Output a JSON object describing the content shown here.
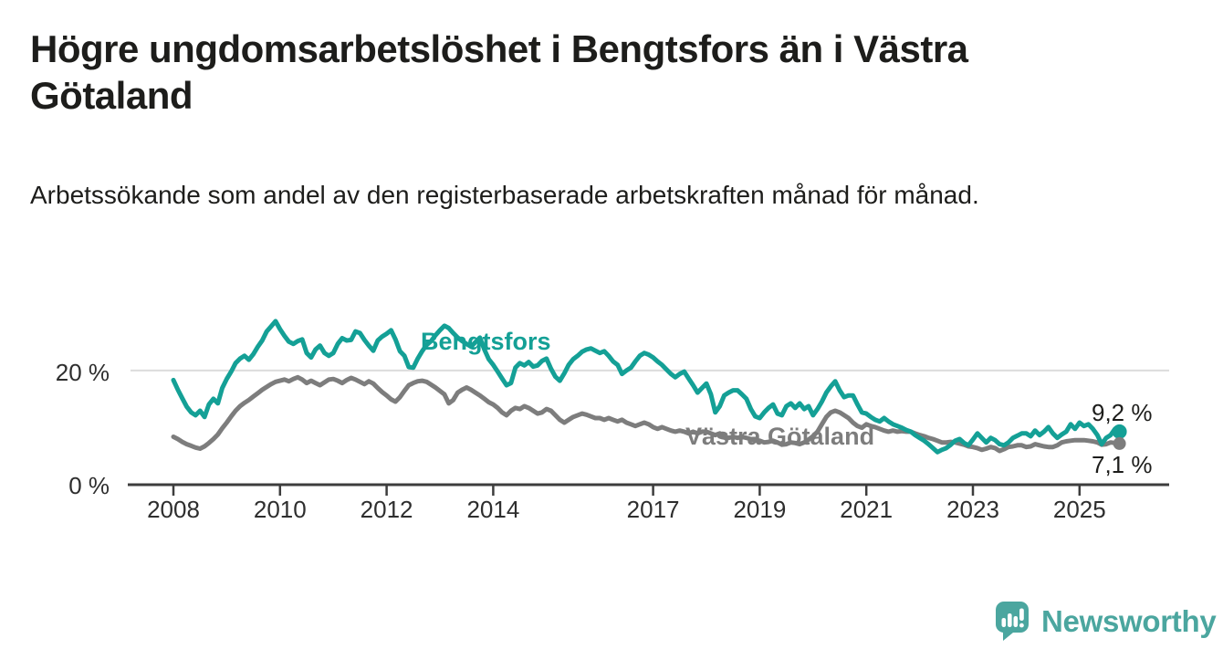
{
  "header": {
    "title": "Högre ungdomsarbetslöshet i Bengtsfors än i Västra Götaland",
    "subtitle": "Arbetssökande som andel av den registerbaserade arbetskraften månad för månad."
  },
  "branding": {
    "logo_text": "Newsworthy",
    "logo_icon": "bar-chart-speech-bubble-icon",
    "logo_color": "#4ba69f"
  },
  "colors": {
    "bengtsfors_line": "#14a096",
    "vastra_gotaland_line": "#7d7d7d",
    "axis": "#3d3d3d",
    "gridline": "#dcdcdc",
    "text": "#1d1d1b"
  },
  "chart_data": {
    "type": "line",
    "title": "Högre ungdomsarbetslöshet i Bengtsfors än i Västra Götaland",
    "subtitle": "Arbetssökande som andel av den registerbaserade arbetskraften månad för månad.",
    "unit": "%",
    "x_start_year": 2008,
    "x_step_months": 1,
    "x_ticks": [
      {
        "year": 2008,
        "label": "2008"
      },
      {
        "year": 2010,
        "label": "2010"
      },
      {
        "year": 2012,
        "label": "2012"
      },
      {
        "year": 2014,
        "label": "2014"
      },
      {
        "year": 2017,
        "label": "2017"
      },
      {
        "year": 2019,
        "label": "2019"
      },
      {
        "year": 2021,
        "label": "2021"
      },
      {
        "year": 2023,
        "label": "2023"
      },
      {
        "year": 2025,
        "label": "2025"
      }
    ],
    "y_ticks": [
      {
        "value": 20,
        "label": "20 %"
      },
      {
        "value": 0,
        "label": "0 %"
      }
    ],
    "gridlines": [
      20
    ],
    "ylim": [
      0,
      30.6
    ],
    "legend_position": "inline-labels",
    "series": [
      {
        "name": "Bengtsfors",
        "color": "#14a096",
        "end_label": "9,2 %",
        "last_value": 9.2,
        "values": [
          18.3,
          16.6,
          15.1,
          13.6,
          12.6,
          12.1,
          12.9,
          11.8,
          14.0,
          15.0,
          14.2,
          16.9,
          18.5,
          19.8,
          21.3,
          22.1,
          22.6,
          21.9,
          22.9,
          24.2,
          25.3,
          26.9,
          27.8,
          28.7,
          27.3,
          26.1,
          25.1,
          24.7,
          25.2,
          25.5,
          23.1,
          22.3,
          23.7,
          24.4,
          23.1,
          22.6,
          23.1,
          24.7,
          25.7,
          25.3,
          25.4,
          26.9,
          26.6,
          25.4,
          24.4,
          23.5,
          25.3,
          26.0,
          26.5,
          27.1,
          25.5,
          23.4,
          22.6,
          20.6,
          20.5,
          22.1,
          23.4,
          24.5,
          25.2,
          26.2,
          27.1,
          27.9,
          27.5,
          26.6,
          25.8,
          25.2,
          24.7,
          24.2,
          25.0,
          25.8,
          23.7,
          22.0,
          21.0,
          19.8,
          18.6,
          17.4,
          17.8,
          20.5,
          21.3,
          20.9,
          21.5,
          20.7,
          20.9,
          21.7,
          22.1,
          20.3,
          18.9,
          18.2,
          19.5,
          21.0,
          22.0,
          22.6,
          23.3,
          23.7,
          23.9,
          23.5,
          23.1,
          23.4,
          22.6,
          21.6,
          21.0,
          19.4,
          20.0,
          20.5,
          21.6,
          22.6,
          23.1,
          22.8,
          22.3,
          21.6,
          21.0,
          20.2,
          19.4,
          18.8,
          19.4,
          19.8,
          18.6,
          17.4,
          16.1,
          16.9,
          17.7,
          15.8,
          12.6,
          13.7,
          15.6,
          16.1,
          16.5,
          16.5,
          15.8,
          15.0,
          13.2,
          11.9,
          11.6,
          12.6,
          13.4,
          14.0,
          12.4,
          12.1,
          13.7,
          14.2,
          13.4,
          14.2,
          13.2,
          13.7,
          12.1,
          13.2,
          14.5,
          16.1,
          17.2,
          18.1,
          16.5,
          15.3,
          15.6,
          15.6,
          14.0,
          12.6,
          12.4,
          11.8,
          11.3,
          11.0,
          11.6,
          11.0,
          10.5,
          10.2,
          9.9,
          9.5,
          9.2,
          8.6,
          8.1,
          7.6,
          7.0,
          6.3,
          5.6,
          6.0,
          6.3,
          6.9,
          7.6,
          7.9,
          7.2,
          6.8,
          7.8,
          8.9,
          8.1,
          7.3,
          8.1,
          7.7,
          7.0,
          6.8,
          7.3,
          8.1,
          8.5,
          8.9,
          8.9,
          8.4,
          9.4,
          8.6,
          9.2,
          10.0,
          8.9,
          8.1,
          8.7,
          9.2,
          10.5,
          9.7,
          10.8,
          10.2,
          10.5,
          9.7,
          8.6,
          7.0,
          8.1,
          8.6,
          9.7,
          9.2
        ]
      },
      {
        "name": "Västra Götaland",
        "color": "#7d7d7d",
        "end_label": "7,1 %",
        "last_value": 7.1,
        "values": [
          8.3,
          7.9,
          7.4,
          7.0,
          6.7,
          6.4,
          6.2,
          6.6,
          7.2,
          7.9,
          8.7,
          9.8,
          10.8,
          11.9,
          12.9,
          13.7,
          14.3,
          14.8,
          15.4,
          16.0,
          16.6,
          17.1,
          17.6,
          18.0,
          18.2,
          18.4,
          18.1,
          18.5,
          18.8,
          18.4,
          17.8,
          18.2,
          17.8,
          17.4,
          17.9,
          18.4,
          18.5,
          18.2,
          17.8,
          18.3,
          18.7,
          18.4,
          18.0,
          17.6,
          18.1,
          17.7,
          16.9,
          16.2,
          15.6,
          14.9,
          14.5,
          15.3,
          16.4,
          17.4,
          17.8,
          18.1,
          18.2,
          18.0,
          17.5,
          17.0,
          16.4,
          15.8,
          14.2,
          14.8,
          16.1,
          16.6,
          17.0,
          16.6,
          16.1,
          15.6,
          15.0,
          14.4,
          14.0,
          13.4,
          12.6,
          12.1,
          12.9,
          13.4,
          13.2,
          13.7,
          13.4,
          12.9,
          12.4,
          12.6,
          13.2,
          12.9,
          12.1,
          11.3,
          10.8,
          11.3,
          11.8,
          12.1,
          12.4,
          12.2,
          11.9,
          11.6,
          11.6,
          11.3,
          11.6,
          11.3,
          11.0,
          11.3,
          10.8,
          10.5,
          10.2,
          10.5,
          10.8,
          10.5,
          10.0,
          9.7,
          10.0,
          9.7,
          9.4,
          9.2,
          9.4,
          9.2,
          8.9,
          9.2,
          8.9,
          9.2,
          9.2,
          8.9,
          8.6,
          8.9,
          8.3,
          8.1,
          8.3,
          8.1,
          8.3,
          8.1,
          7.9,
          7.6,
          7.6,
          7.3,
          7.4,
          7.6,
          7.3,
          6.9,
          7.0,
          7.3,
          7.2,
          7.0,
          7.3,
          7.8,
          8.4,
          9.2,
          10.5,
          11.8,
          12.6,
          12.9,
          12.6,
          12.1,
          11.6,
          10.8,
          10.2,
          9.9,
          10.5,
          10.2,
          10.0,
          9.7,
          9.4,
          9.2,
          9.4,
          9.2,
          9.3,
          9.2,
          9.2,
          8.9,
          8.6,
          8.4,
          8.1,
          7.9,
          7.6,
          7.3,
          7.3,
          7.4,
          7.3,
          7.1,
          6.9,
          6.6,
          6.5,
          6.3,
          6.0,
          6.2,
          6.5,
          6.3,
          5.8,
          6.1,
          6.5,
          6.6,
          6.8,
          6.8,
          6.5,
          6.6,
          7.0,
          6.8,
          6.6,
          6.5,
          6.5,
          6.8,
          7.3,
          7.5,
          7.6,
          7.7,
          7.7,
          7.7,
          7.6,
          7.5,
          7.3,
          6.9,
          7.0,
          7.3,
          7.2,
          7.1
        ]
      }
    ]
  }
}
